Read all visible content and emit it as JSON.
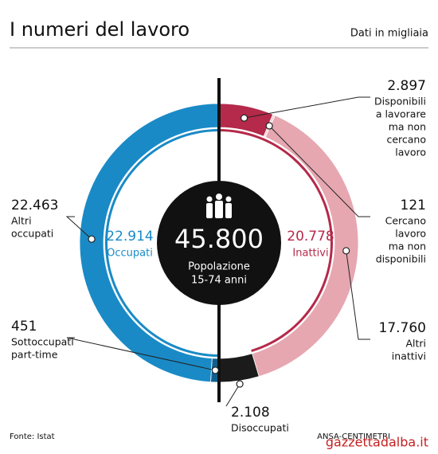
{
  "chart_data": {
    "type": "donut",
    "title": "I numeri del lavoro",
    "subtitle": "Dati in migliaia",
    "total": 45800,
    "total_label": "45.800",
    "center_label": [
      "Popolazione",
      "15-74 anni"
    ],
    "groups": [
      {
        "name": "Inattivi",
        "value": 20778,
        "value_label": "20.778",
        "color": "#b5294a"
      },
      {
        "name": "Occupati",
        "value": 22914,
        "value_label": "22.914",
        "color": "#1a8ac6"
      }
    ],
    "categories": [
      [
        "Disponibili",
        "a lavorare",
        "ma non",
        "cercano",
        "lavoro"
      ],
      [
        "Cercano",
        "lavoro",
        "ma non",
        "disponibili"
      ],
      [
        "Altri",
        "inattivi"
      ],
      [
        "Disoccupati"
      ],
      [
        "Sottoccupati",
        "part-time"
      ],
      [
        "Altri",
        "occupati"
      ]
    ],
    "values": [
      2897,
      121,
      17760,
      2108,
      451,
      22463
    ],
    "value_labels": [
      "2.897",
      "121",
      "17.760",
      "2.108",
      "451",
      "22.463"
    ],
    "colors": [
      "#b5294a",
      "#f4d3d8",
      "#e6a7b1",
      "#1b1b1b",
      "#0f5f8e",
      "#1a8ac6"
    ],
    "source": "Fonte: Istat",
    "credit": "ANSA-CENTIMETRI"
  },
  "watermark": "gazzettadalba.it"
}
